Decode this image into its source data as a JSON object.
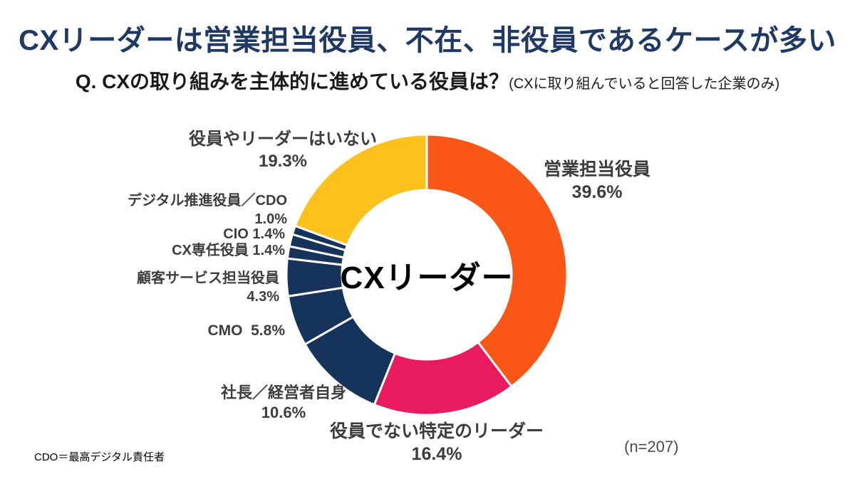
{
  "slide": {
    "title": "CXリーダーは営業担当役員、不在、非役員であるケースが多い",
    "question_main": "Q. CXの取り組みを主体的に進めている役員は？",
    "question_note": "(CXに取り組んでいると回答した企業のみ)",
    "footnote": "CDO＝最高デジタル責任者",
    "sample_size": "(n=207)"
  },
  "chart_data": {
    "type": "pie",
    "subtype": "donut",
    "title": "CXの取り組みを主体的に進めている役員",
    "center_label": "CXリーダー",
    "start_angle_deg": 0,
    "direction": "clockwise",
    "stroke_color": "#ffffff",
    "segments": [
      {
        "label": "営業担当役員",
        "value": 39.6,
        "value_label": "39.6%",
        "color": "#FA5616"
      },
      {
        "label": "役員でない特定のリーダー",
        "value": 16.4,
        "value_label": "16.4%",
        "color": "#E91A5E"
      },
      {
        "label": "社長／経営者自身",
        "value": 10.6,
        "value_label": "10.6%",
        "color": "#16335C"
      },
      {
        "label": "CMO",
        "value": 5.8,
        "value_label": "5.8%",
        "color": "#16335C"
      },
      {
        "label": "顧客サービス担当役員",
        "value": 4.3,
        "value_label": "4.3%",
        "color": "#16335C"
      },
      {
        "label": "CX専任役員",
        "value": 1.4,
        "value_label": "1.4%",
        "color": "#16335C"
      },
      {
        "label": "CIO",
        "value": 1.4,
        "value_label": "1.4%",
        "color": "#16335C"
      },
      {
        "label": "デジタル推進役員／CDO",
        "value": 1.0,
        "value_label": "1.0%",
        "color": "#16335C"
      },
      {
        "label": "役員やリーダーはいない",
        "value": 19.3,
        "value_label": "19.3%",
        "color": "#FCC11C"
      }
    ],
    "colors": {
      "orange": "#FA5616",
      "pink": "#E91A5E",
      "navy": "#16335C",
      "yellow": "#FCC11C",
      "title_navy": "#1F3864",
      "label_gray": "#3D3D3D"
    }
  }
}
